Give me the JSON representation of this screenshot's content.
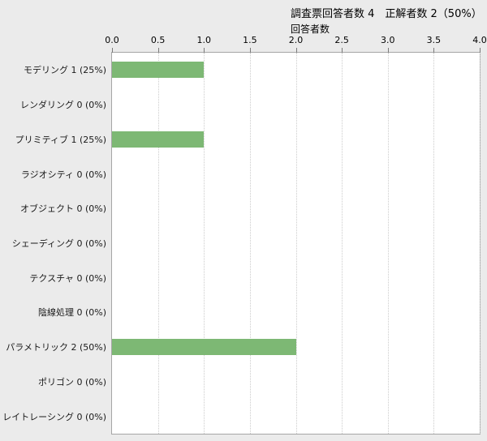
{
  "page": {
    "background_color": "#ebebeb",
    "plot_background_color": "#ffffff",
    "plot_border_color": "#a6a6a6",
    "grid_color": "#cccccc"
  },
  "header": {
    "title": "調査票回答者数 4　正解者数 2（50%）"
  },
  "chart_data": {
    "type": "bar",
    "orientation": "horizontal",
    "title": "調査票回答者数 4　正解者数 2（50%）",
    "xlabel": "回答者数",
    "ylabel": "",
    "categories": [
      "モデリング 1 (25%)",
      "レンダリング 0 (0%)",
      "プリミティブ 1 (25%)",
      "ラジオシティ 0 (0%)",
      "オブジェクト 0 (0%)",
      "シェーディング 0 (0%)",
      "テクスチャ 0 (0%)",
      "陰線処理 0 (0%)",
      "パラメトリック 2 (50%)",
      "ポリゴン 0 (0%)",
      "レイトレーシング 0 (0%)"
    ],
    "values": [
      1,
      0,
      1,
      0,
      0,
      0,
      0,
      0,
      2,
      0,
      0
    ],
    "xlim": [
      0,
      4
    ],
    "xticks": [
      0.0,
      0.5,
      1.0,
      1.5,
      2.0,
      2.5,
      3.0,
      3.5,
      4.0
    ],
    "xtick_labels": [
      "0.0",
      "0.5",
      "1.0",
      "1.5",
      "2.0",
      "2.5",
      "3.0",
      "3.5",
      "4.0"
    ],
    "grid": true,
    "legend": "none",
    "bar_color": "#7db874"
  }
}
